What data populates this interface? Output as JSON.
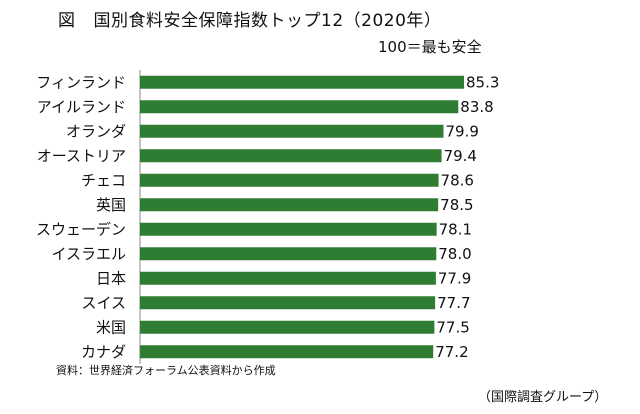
{
  "figure_label": "図",
  "title": "国別食料安全保障指数トップ12（2020年）",
  "scale_note": "100＝最も安全",
  "source": "資料：世界経済フォーラム公表資料から作成",
  "credit": "（国際調査グループ）",
  "colors": {
    "bar": "#2e7d32",
    "axis": "#888888"
  },
  "chart_data": {
    "type": "bar",
    "orientation": "horizontal",
    "title": "国別食料安全保障指数トップ12（2020年）",
    "categories": [
      "フィンランド",
      "アイルランド",
      "オランダ",
      "オーストリア",
      "チェコ",
      "英国",
      "スウェーデン",
      "イスラエル",
      "日本",
      "スイス",
      "米国",
      "カナダ"
    ],
    "series": [
      {
        "values": [
          85.3,
          83.8,
          79.9,
          79.4,
          78.6,
          78.5,
          78.1,
          78.0,
          77.9,
          77.7,
          77.5,
          77.2
        ],
        "labels": [
          "85.3",
          "83.8",
          "79.9",
          "79.4",
          "78.6",
          "78.5",
          "78.1",
          "78.0",
          "77.9",
          "77.7",
          "77.5",
          "77.2"
        ]
      }
    ],
    "xlim": [
      0,
      85.3
    ],
    "grid": false,
    "legend": "none"
  }
}
